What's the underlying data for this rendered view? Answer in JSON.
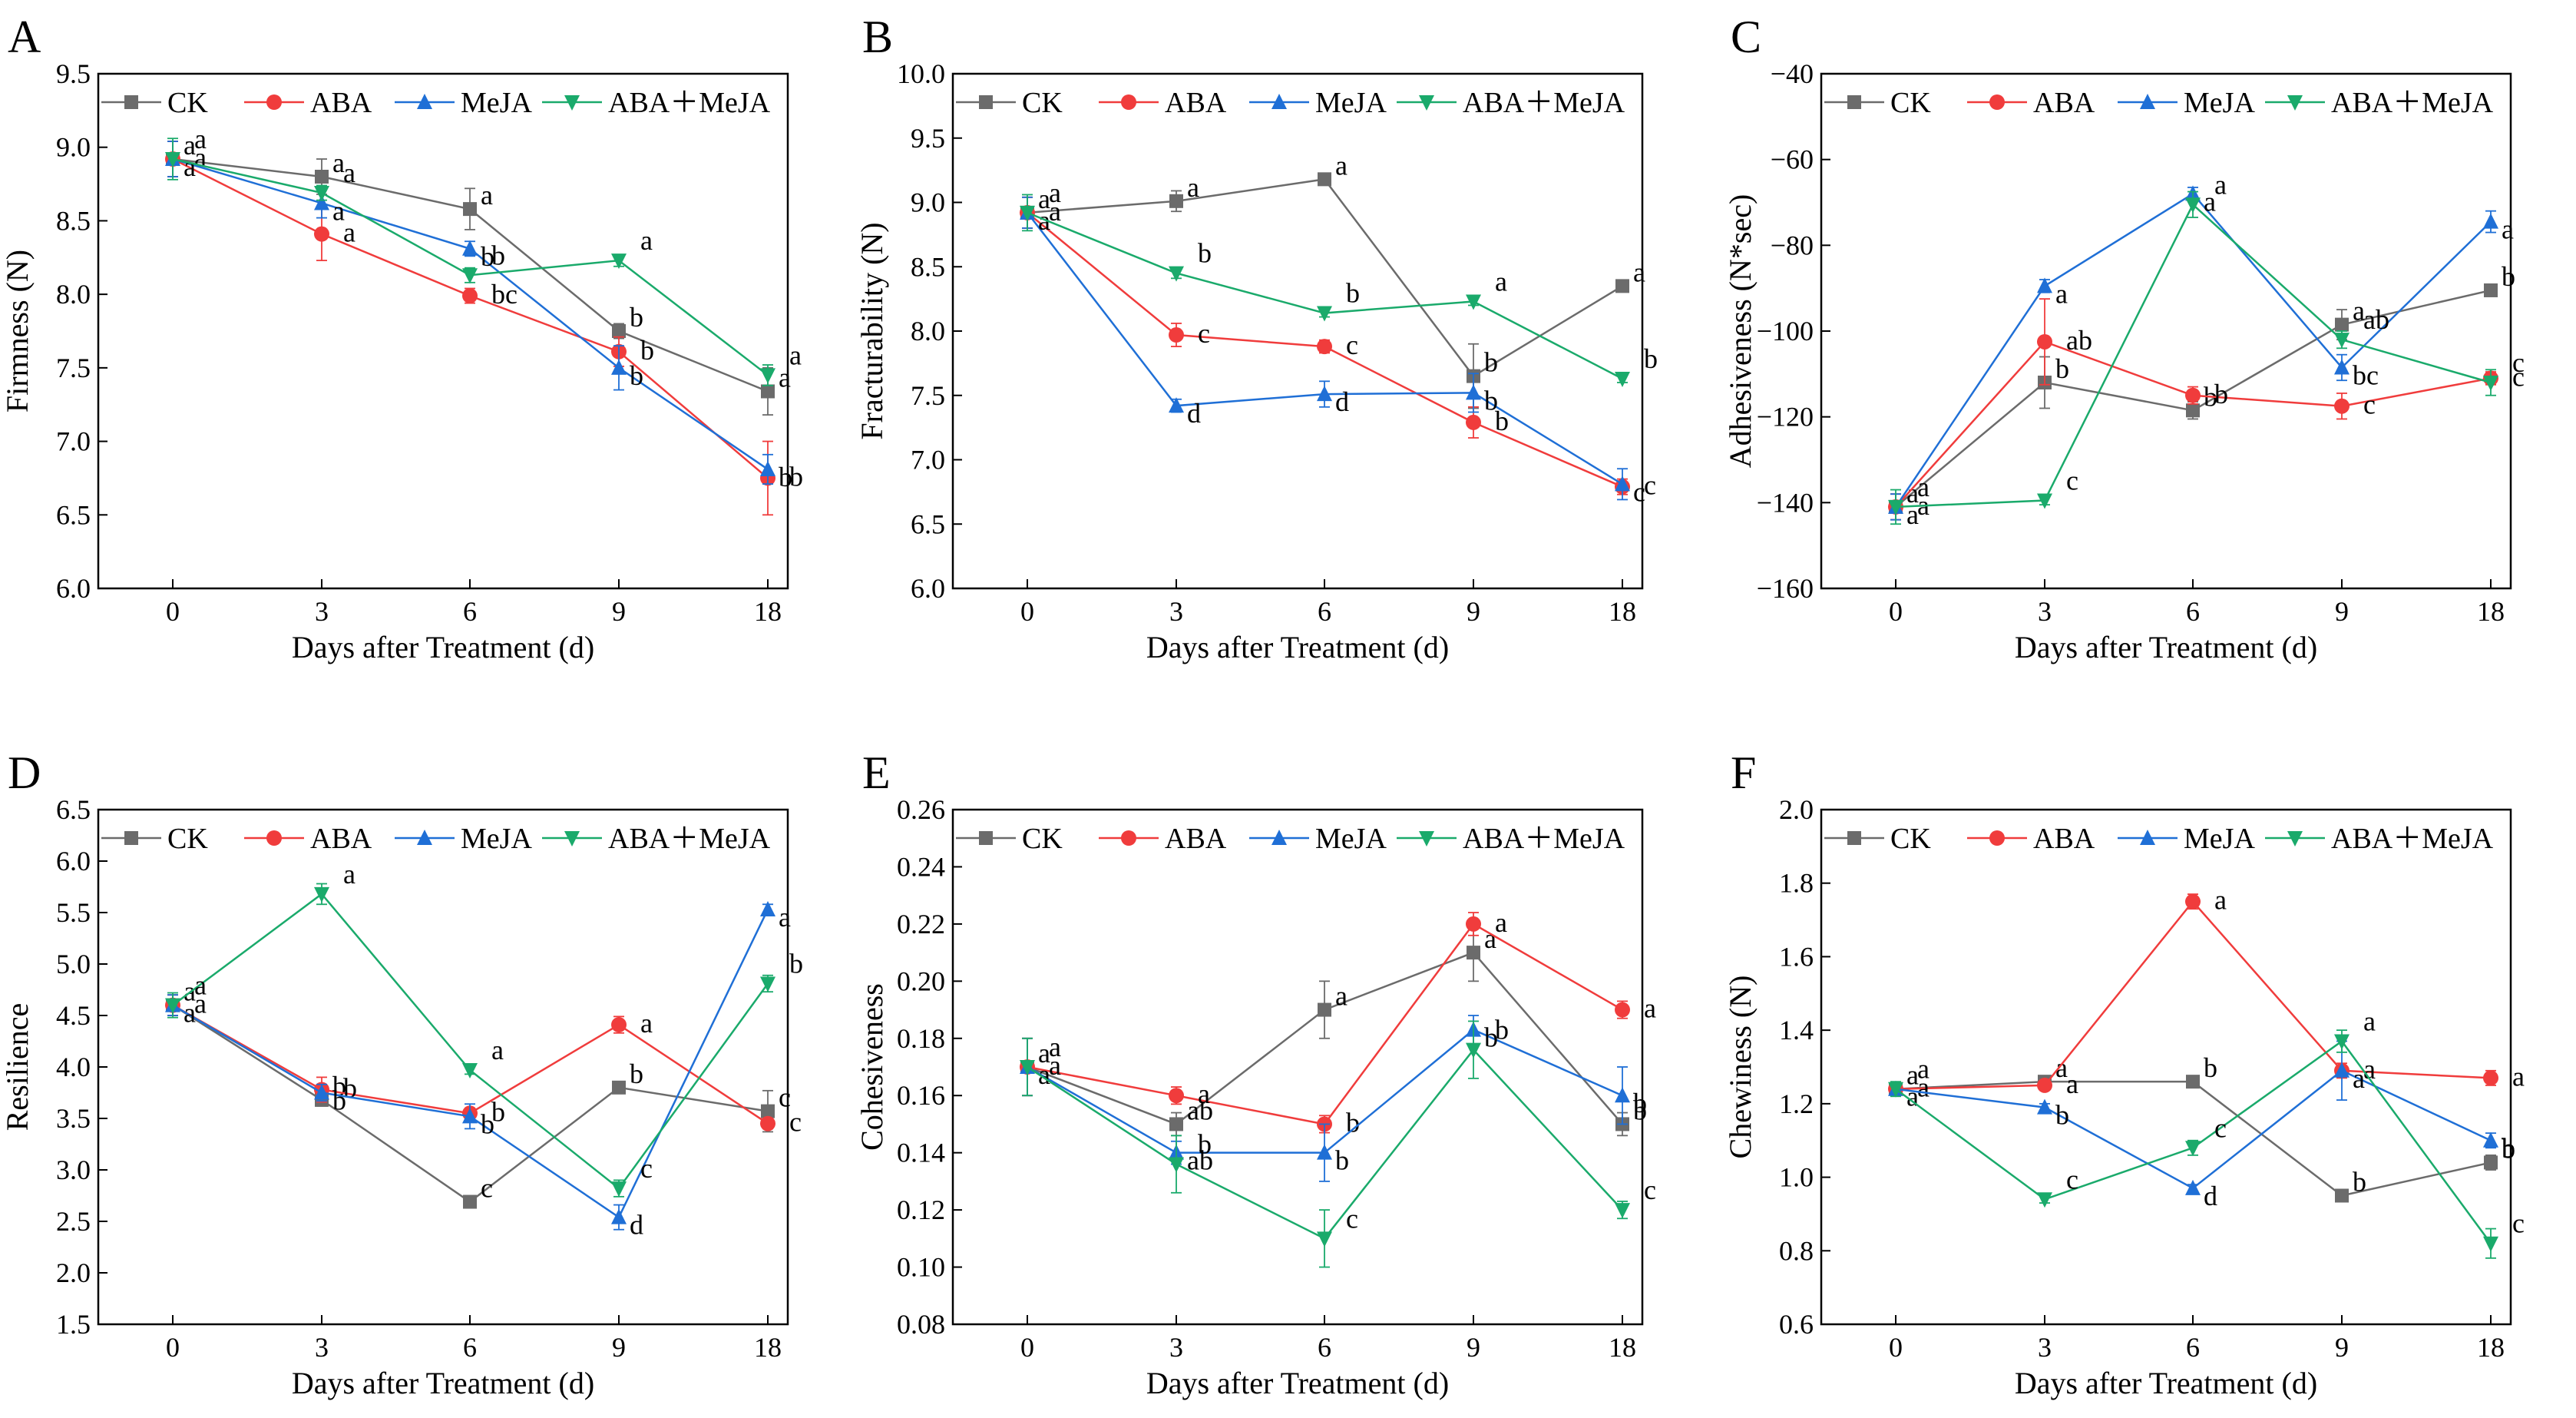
{
  "series_meta": [
    {
      "key": "ck",
      "name": "CK",
      "color": "#6b6b6b",
      "marker": "square"
    },
    {
      "key": "aba",
      "name": "ABA",
      "color": "#f03c3c",
      "marker": "circle"
    },
    {
      "key": "meja",
      "name": "MeJA",
      "color": "#1f6fd6",
      "marker": "triangle-up"
    },
    {
      "key": "abameja",
      "name": "ABA＋MeJA",
      "color": "#1aaa6b",
      "marker": "triangle-down"
    }
  ],
  "chart_data": [
    {
      "type": "line",
      "panel": "A",
      "xlabel": "Days after Treatment (d)",
      "ylabel": "Firmness (N)",
      "categories": [
        "0",
        "3",
        "6",
        "9",
        "18"
      ],
      "ylim": [
        6.0,
        9.5
      ],
      "yticks": [
        "6.0",
        "6.5",
        "7.0",
        "7.5",
        "8.0",
        "8.5",
        "9.0",
        "9.5"
      ],
      "series": [
        {
          "name": "CK",
          "values": [
            8.92,
            8.8,
            8.58,
            7.75,
            7.34
          ],
          "errors": [
            0.12,
            0.12,
            0.14,
            0.05,
            0.16
          ],
          "labels": [
            "a",
            "a",
            "a",
            "b",
            "a"
          ]
        },
        {
          "name": "ABA",
          "values": [
            8.92,
            8.41,
            7.99,
            7.61,
            6.75
          ],
          "errors": [
            0.12,
            0.18,
            0.05,
            0.1,
            0.25
          ],
          "labels": [
            "a",
            "a",
            "bc",
            "b",
            "b"
          ]
        },
        {
          "name": "MeJA",
          "values": [
            8.92,
            8.62,
            8.31,
            7.5,
            6.81
          ],
          "errors": [
            0.12,
            0.1,
            0.05,
            0.15,
            0.1
          ],
          "labels": [
            "a",
            "a",
            "b",
            "b",
            "b"
          ]
        },
        {
          "name": "ABA＋MeJA",
          "values": [
            8.92,
            8.69,
            8.13,
            8.23,
            7.45
          ],
          "errors": [
            0.14,
            0.05,
            0.05,
            0.04,
            0.07
          ],
          "labels": [
            "a",
            "a",
            "b",
            "a",
            "a"
          ]
        }
      ]
    },
    {
      "type": "line",
      "panel": "B",
      "xlabel": "Days after Treatment (d)",
      "ylabel": "Fracturability (N)",
      "categories": [
        "0",
        "3",
        "6",
        "9",
        "18"
      ],
      "ylim": [
        6.0,
        10.0
      ],
      "yticks": [
        "6.0",
        "6.5",
        "7.0",
        "7.5",
        "8.0",
        "8.5",
        "9.0",
        "9.5",
        "10.0"
      ],
      "series": [
        {
          "name": "CK",
          "values": [
            8.92,
            9.01,
            9.18,
            7.65,
            8.35
          ],
          "errors": [
            0.12,
            0.08,
            0.03,
            0.25,
            0.03
          ],
          "labels": [
            "a",
            "a",
            "a",
            "b",
            "a"
          ]
        },
        {
          "name": "ABA",
          "values": [
            8.92,
            7.97,
            7.88,
            7.29,
            6.79
          ],
          "errors": [
            0.12,
            0.09,
            0.05,
            0.12,
            0.06
          ],
          "labels": [
            "a",
            "c",
            "c",
            "b",
            "c"
          ]
        },
        {
          "name": "MeJA",
          "values": [
            8.92,
            7.42,
            7.51,
            7.52,
            6.81
          ],
          "errors": [
            0.12,
            0.05,
            0.1,
            0.15,
            0.12
          ],
          "labels": [
            "a",
            "d",
            "d",
            "b",
            "c"
          ]
        },
        {
          "name": "ABA＋MeJA",
          "values": [
            8.92,
            8.45,
            8.14,
            8.23,
            7.63
          ],
          "errors": [
            0.14,
            0.04,
            0.03,
            0.03,
            0.03
          ],
          "labels": [
            "a",
            "b",
            "b",
            "a",
            "b"
          ]
        }
      ]
    },
    {
      "type": "line",
      "panel": "C",
      "xlabel": "Days after Treatment (d)",
      "ylabel": "Adhesiveness (N*sec)",
      "categories": [
        "0",
        "3",
        "6",
        "9",
        "18"
      ],
      "ylim": [
        -160,
        -40
      ],
      "yticks": [
        "−160",
        "−140",
        "−120",
        "−100",
        "−80",
        "−60",
        "−40"
      ],
      "series": [
        {
          "name": "CK",
          "values": [
            -141,
            -112,
            -118.5,
            -98.5,
            -90.5
          ],
          "errors": [
            3,
            6,
            2,
            3.5,
            1
          ],
          "labels": [
            "a",
            "b",
            "b",
            "a",
            "b"
          ]
        },
        {
          "name": "ABA",
          "values": [
            -141,
            -102.5,
            -115,
            -117.5,
            -111
          ],
          "errors": [
            3,
            10,
            2,
            3,
            1.5
          ],
          "labels": [
            "a",
            "ab",
            "b",
            "c",
            "c"
          ]
        },
        {
          "name": "MeJA",
          "values": [
            -141,
            -89.5,
            -68,
            -108.5,
            -74.5
          ],
          "errors": [
            3,
            1.5,
            1.5,
            3,
            2.5
          ],
          "labels": [
            "a",
            "a",
            "a",
            "bc",
            "a"
          ]
        },
        {
          "name": "ABA＋MeJA",
          "values": [
            -141,
            -139.5,
            -70.5,
            -102,
            -112
          ],
          "errors": [
            4,
            1,
            3,
            2,
            3
          ],
          "labels": [
            "a",
            "c",
            "a",
            "ab",
            "c"
          ]
        }
      ]
    },
    {
      "type": "line",
      "panel": "D",
      "xlabel": "Days after Treatment (d)",
      "ylabel": "Resilience",
      "categories": [
        "0",
        "3",
        "6",
        "9",
        "18"
      ],
      "ylim": [
        1.5,
        6.5
      ],
      "yticks": [
        "1.5",
        "2.0",
        "2.5",
        "3.0",
        "3.5",
        "4.0",
        "4.5",
        "5.0",
        "5.5",
        "6.0",
        "6.5"
      ],
      "series": [
        {
          "name": "CK",
          "values": [
            4.6,
            3.68,
            2.69,
            3.8,
            3.57
          ],
          "errors": [
            0.1,
            0.06,
            0.04,
            0.03,
            0.2
          ],
          "labels": [
            "a",
            "b",
            "c",
            "b",
            "c"
          ]
        },
        {
          "name": "ABA",
          "values": [
            4.6,
            3.78,
            3.55,
            4.41,
            3.45
          ],
          "errors": [
            0.1,
            0.12,
            0.05,
            0.08,
            0.05
          ],
          "labels": [
            "a",
            "b",
            "b",
            "a",
            "c"
          ]
        },
        {
          "name": "MeJA",
          "values": [
            4.6,
            3.75,
            3.52,
            2.54,
            5.53
          ],
          "errors": [
            0.1,
            0.08,
            0.12,
            0.12,
            0.05
          ],
          "labels": [
            "a",
            "b",
            "b",
            "d",
            "a"
          ]
        },
        {
          "name": "ABA＋MeJA",
          "values": [
            4.6,
            5.68,
            3.97,
            2.82,
            4.81
          ],
          "errors": [
            0.12,
            0.1,
            0.04,
            0.08,
            0.08
          ],
          "labels": [
            "a",
            "a",
            "a",
            "c",
            "b"
          ]
        }
      ]
    },
    {
      "type": "line",
      "panel": "E",
      "xlabel": "Days after Treatment (d)",
      "ylabel": "Cohesiveness",
      "categories": [
        "0",
        "3",
        "6",
        "9",
        "18"
      ],
      "ylim": [
        0.08,
        0.26
      ],
      "yticks": [
        "0.08",
        "0.10",
        "0.12",
        "0.14",
        "0.16",
        "0.18",
        "0.20",
        "0.22",
        "0.24",
        "0.26"
      ],
      "series": [
        {
          "name": "CK",
          "values": [
            0.17,
            0.15,
            0.19,
            0.21,
            0.15
          ],
          "errors": [
            0.01,
            0.004,
            0.01,
            0.01,
            0.004
          ],
          "labels": [
            "a",
            "ab",
            "a",
            "a",
            "b"
          ]
        },
        {
          "name": "ABA",
          "values": [
            0.17,
            0.16,
            0.15,
            0.22,
            0.19
          ],
          "errors": [
            0.01,
            0.003,
            0.003,
            0.004,
            0.003
          ],
          "labels": [
            "a",
            "a",
            "b",
            "a",
            "a"
          ]
        },
        {
          "name": "MeJA",
          "values": [
            0.17,
            0.14,
            0.14,
            0.183,
            0.16
          ],
          "errors": [
            0.01,
            0.004,
            0.01,
            0.005,
            0.01
          ],
          "labels": [
            "a",
            "ab",
            "b",
            "b",
            "b"
          ]
        },
        {
          "name": "ABA＋MeJA",
          "values": [
            0.17,
            0.136,
            0.11,
            0.176,
            0.12
          ],
          "errors": [
            0.01,
            0.01,
            0.01,
            0.01,
            0.003
          ],
          "labels": [
            "a",
            "b",
            "c",
            "b",
            "c"
          ]
        }
      ]
    },
    {
      "type": "line",
      "panel": "F",
      "xlabel": "Days after Treatment (d)",
      "ylabel": "Chewiness (N)",
      "categories": [
        "0",
        "3",
        "6",
        "9",
        "18"
      ],
      "ylim": [
        0.6,
        2.0
      ],
      "yticks": [
        "0.6",
        "0.8",
        "1.0",
        "1.2",
        "1.4",
        "1.6",
        "1.8",
        "2.0"
      ],
      "series": [
        {
          "name": "CK",
          "values": [
            1.24,
            1.26,
            1.26,
            0.95,
            1.04
          ],
          "errors": [
            0.01,
            0.01,
            0.01,
            0.01,
            0.02
          ],
          "labels": [
            "a",
            "a",
            "b",
            "b",
            "b"
          ]
        },
        {
          "name": "ABA",
          "values": [
            1.24,
            1.25,
            1.75,
            1.29,
            1.27
          ],
          "errors": [
            0.01,
            0.01,
            0.02,
            0.02,
            0.02
          ],
          "labels": [
            "a",
            "a",
            "a",
            "a",
            "a"
          ]
        },
        {
          "name": "MeJA",
          "values": [
            1.24,
            1.19,
            0.97,
            1.29,
            1.1
          ],
          "errors": [
            0.01,
            0.01,
            0.01,
            0.08,
            0.02
          ],
          "labels": [
            "a",
            "b",
            "d",
            "a",
            "b"
          ]
        },
        {
          "name": "ABA＋MeJA",
          "values": [
            1.24,
            0.94,
            1.08,
            1.37,
            0.82
          ],
          "errors": [
            0.02,
            0.01,
            0.02,
            0.03,
            0.04
          ],
          "labels": [
            "a",
            "c",
            "c",
            "a",
            "c"
          ]
        }
      ]
    }
  ]
}
